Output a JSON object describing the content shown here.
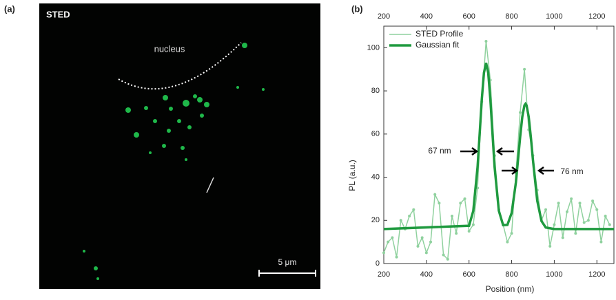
{
  "image_panel": {
    "label": "(a)",
    "title": "STED",
    "annotation": "nucleus",
    "scale_bar": "5 μm"
  },
  "chart_panel_label": "(b)",
  "chart_data": {
    "type": "line",
    "x_label": "Position (nm)",
    "y_label": "PL (a.u.)",
    "xlim": [
      200,
      1280
    ],
    "xticks": [
      200,
      400,
      600,
      800,
      1000,
      1200
    ],
    "ylim": [
      0,
      110
    ],
    "yticks": [
      0,
      20,
      40,
      60,
      80,
      100
    ],
    "top_axis": true,
    "legend": "upper-left",
    "annotations": [
      "67 nm",
      "76 nm"
    ],
    "series": [
      {
        "name": "STED Profile",
        "color": "#8fd19e",
        "markers": true,
        "x": [
          200,
          220,
          240,
          260,
          280,
          300,
          320,
          340,
          360,
          380,
          400,
          420,
          440,
          460,
          480,
          500,
          520,
          540,
          560,
          580,
          600,
          620,
          640,
          660,
          680,
          700,
          720,
          740,
          760,
          780,
          800,
          820,
          840,
          860,
          880,
          900,
          920,
          940,
          960,
          980,
          1000,
          1020,
          1040,
          1060,
          1080,
          1100,
          1120,
          1140,
          1160,
          1180,
          1200,
          1220,
          1240,
          1260
        ],
        "values": [
          5,
          10,
          12,
          3,
          20,
          16,
          22,
          25,
          8,
          12,
          5,
          10,
          32,
          28,
          4,
          2,
          22,
          14,
          28,
          30,
          15,
          18,
          35,
          75,
          103,
          85,
          50,
          25,
          18,
          10,
          14,
          42,
          70,
          90,
          62,
          50,
          34,
          20,
          25,
          8,
          18,
          28,
          12,
          24,
          30,
          14,
          28,
          19,
          20,
          29,
          25,
          10,
          22,
          18
        ]
      },
      {
        "name": "Gaussian fit",
        "color": "#1f9a3f",
        "markers": false,
        "x": [
          200,
          600,
          620,
          640,
          650,
          660,
          670,
          680,
          690,
          700,
          710,
          720,
          740,
          760,
          780,
          800,
          820,
          840,
          850,
          860,
          865,
          870,
          880,
          890,
          900,
          920,
          940,
          960,
          1000,
          1280
        ],
        "values": [
          16,
          17.5,
          24.4,
          44.7,
          60.3,
          76.2,
          88.4,
          93,
          88.4,
          76.2,
          60.3,
          44.7,
          24.4,
          17.8,
          17.9,
          23.4,
          37.6,
          58.7,
          68,
          73.3,
          74,
          73.3,
          68,
          58.7,
          47.9,
          29.2,
          19.7,
          16.7,
          16,
          16
        ]
      }
    ]
  }
}
